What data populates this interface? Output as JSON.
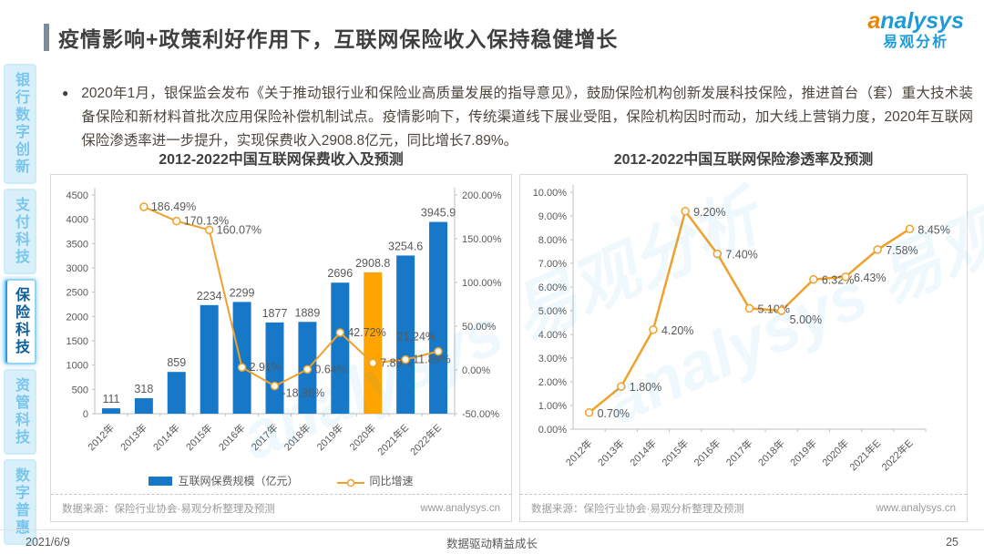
{
  "header": {
    "title": "疫情影响+政策利好作用下，互联网保险收入保持稳健增长",
    "logo": {
      "en": "analysys",
      "cn": "易观分析"
    }
  },
  "sidebar": {
    "items": [
      {
        "label": "银行数字创新",
        "active": false
      },
      {
        "label": "支付科技",
        "active": false
      },
      {
        "label": "保险科技",
        "active": true
      },
      {
        "label": "资管科技",
        "active": false
      },
      {
        "label": "数字普惠",
        "active": false
      }
    ]
  },
  "bullet": "●",
  "body_text": "2020年1月，银保监会发布《关于推动银行业和保险业高质量发展的指导意见》，鼓励保险机构创新发展科技保险，推进首台（套）重大技术装备保险和新材料首批次应用保险补偿机制试点。疫情影响下，传统渠道线下展业受阻，保险机构因时而动，加大线上营销力度，2020年互联网保险渗透率进一步提升，实现保费收入2908.8亿元，同比增长7.89%。",
  "watermark": "analysys 易观分析",
  "chart_data": [
    {
      "type": "bar",
      "title": "2012-2022中国互联网保费收入及预测",
      "categories": [
        "2012年",
        "2013年",
        "2014年",
        "2015年",
        "2016年",
        "2017年",
        "2018年",
        "2019年",
        "2020年",
        "2021年E",
        "2022年E"
      ],
      "series": [
        {
          "name": "互联网保费规模（亿元）",
          "type": "bar",
          "values": [
            111,
            318,
            859,
            2234,
            2299,
            1877,
            1889,
            2696,
            2908.8,
            3254.6,
            3945.9
          ],
          "labels": [
            "111",
            "318",
            "859",
            "2234",
            "2299",
            "1877",
            "1889",
            "2696",
            "2908.8",
            "3254.6",
            "3945.9"
          ],
          "color": "#1778C8",
          "highlight_index": 8,
          "highlight_color": "#FFA400"
        },
        {
          "name": "同比增速",
          "type": "line",
          "values": [
            null,
            186.49,
            170.13,
            160.07,
            2.91,
            -18.36,
            0.64,
            42.72,
            7.89,
            11.89,
            21.24
          ],
          "labels": [
            null,
            "186.49%",
            "170.13%",
            "160.07%",
            "2.91%",
            "-18.36%",
            "0.64%",
            "42.72%",
            "7.89%",
            "11.89%",
            "21.24%"
          ],
          "color": "#EFA12C"
        }
      ],
      "y_left": {
        "min": 0,
        "max": 4500,
        "step": 500
      },
      "y_right": {
        "min": -50,
        "max": 200,
        "step": 50
      },
      "legend_position": "bottom",
      "grid": false,
      "source": "数据来源：保险行业协会·易观分析整理及预测",
      "source_url": "www.analysys.cn"
    },
    {
      "type": "line",
      "title": "2012-2022中国互联网保险渗透率及预测",
      "categories": [
        "2012年",
        "2013年",
        "2014年",
        "2015年",
        "2016年",
        "2017年",
        "2018年",
        "2019年",
        "2020年",
        "2021年E",
        "2022年E"
      ],
      "values": [
        0.7,
        1.8,
        4.2,
        9.2,
        7.4,
        5.1,
        5.0,
        6.32,
        6.43,
        7.58,
        8.45
      ],
      "labels": [
        "0.70%",
        "1.80%",
        "4.20%",
        "9.20%",
        "7.40%",
        "5.10%",
        "5.00%",
        "6.32%",
        "6.43%",
        "7.58%",
        "8.45%"
      ],
      "color": "#EFA12C",
      "y": {
        "min": 0,
        "max": 10,
        "step": 1
      },
      "grid": false,
      "source": "数据来源：保险行业协会·易观分析整理及预测",
      "source_url": "www.analysys.cn"
    }
  ],
  "footer": {
    "date": "2021/6/9",
    "center": "数据驱动精益成长",
    "page": "25"
  }
}
